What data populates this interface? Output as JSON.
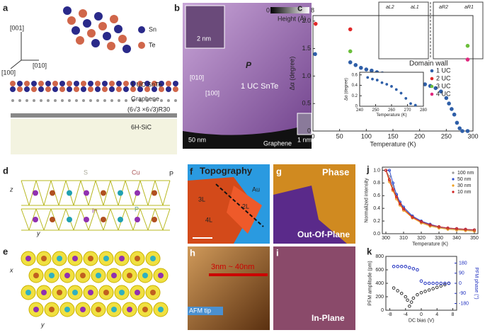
{
  "panels": {
    "a": {
      "label": "a",
      "dir_001": "[001]",
      "dir_100": "[100]",
      "dir_010": "[010]",
      "sn": "Sn",
      "te": "Te",
      "layer_snte": "1 UC SnTe",
      "layer_graphene": "Graphene",
      "reconstruction": "(6√3 ×6√3)R30",
      "substrate": "6H-SiC"
    },
    "b": {
      "label": "b",
      "zoom_scale": "2 nm",
      "cbar_min": "0",
      "cbar_max": "8",
      "cbar_label": "Height (Å)",
      "polarization": "P",
      "dir_010": "[010]",
      "dir_100": "[100]",
      "film": "1 UC SnTe",
      "scale": "50 nm",
      "graphene": "Graphene",
      "inset_scale": "1 nm"
    },
    "c": {
      "label": "c",
      "a_l2": "aL2",
      "a_l1": "aL1",
      "a_r2": "aR2",
      "a_r1": "aR1",
      "domain_wall": "Domain wall"
    },
    "d": {
      "label": "d",
      "s": "S",
      "cu": "Cu",
      "in": "In",
      "p_atom": "P",
      "p_arrow": "P",
      "z": "z",
      "y": "y"
    },
    "e": {
      "label": "e",
      "x": "x",
      "y": "y"
    },
    "f": {
      "label": "f",
      "title": "Topography",
      "au": "Au",
      "l3": "3L",
      "l2": "2L",
      "l4": "4L"
    },
    "g": {
      "label": "g",
      "title": "Phase",
      "subtitle": "Out-Of-Plane"
    },
    "h": {
      "label": "h",
      "thickness": "3nm ~ 40nm",
      "tip": "AFM tip"
    },
    "i": {
      "label": "i",
      "subtitle": "In-Plane"
    },
    "j": {
      "label": "j"
    },
    "k": {
      "label": "k"
    }
  },
  "chart_data": [
    {
      "type": "scatter",
      "x_label": "Temperature (K)",
      "y_label": "Δα (degree)",
      "xlim": [
        0,
        300
      ],
      "ylim": [
        0,
        2.1
      ],
      "xticks": [
        0,
        50,
        100,
        150,
        200,
        250,
        300
      ],
      "yticks": [
        0,
        {
          "value": 0.5,
          "label": "0.5"
        },
        {
          "value": 1,
          "label": "1.0"
        },
        {
          "value": 1.5,
          "label": "1.5"
        },
        {
          "value": 2,
          "label": "2.0"
        }
      ],
      "series": [
        {
          "name": "1 UC",
          "color": "#2f5fa8",
          "x": [
            4,
            70,
            80,
            90,
            100,
            110,
            120,
            130,
            140,
            150,
            160,
            170,
            180,
            190,
            200,
            210,
            220,
            230,
            240,
            250,
            255,
            260,
            265,
            270,
            275,
            280,
            290
          ],
          "values": [
            1.4,
            1.25,
            1.2,
            1.15,
            1.12,
            1.1,
            1.07,
            1.05,
            1.03,
            1.0,
            0.98,
            0.95,
            0.93,
            0.9,
            0.88,
            0.85,
            0.82,
            0.78,
            0.72,
            0.6,
            0.5,
            0.4,
            0.3,
            0.15,
            0.05,
            0,
            0
          ]
        },
        {
          "name": "2 UC",
          "color": "#e0292a",
          "x": [
            5,
            70
          ],
          "values": [
            1.95,
            1.85
          ]
        },
        {
          "name": "3 UC",
          "color": "#6cbf3c",
          "x": [
            70,
            290
          ],
          "values": [
            1.45,
            1.55
          ]
        },
        {
          "name": "4 UC",
          "color": "#e0287e",
          "x": [
            290
          ],
          "values": [
            1.3
          ]
        }
      ]
    },
    {
      "type": "scatter",
      "x_label": "Temperature (K)",
      "y_label": "Δα (degree)",
      "xlim": [
        240,
        280
      ],
      "ylim": [
        0,
        0.65
      ],
      "xticks": [
        240,
        250,
        260,
        270,
        280
      ],
      "yticks": [
        0,
        0.2,
        0.4,
        0.6
      ],
      "series": [
        {
          "color": "#2f5fa8",
          "x": [
            245,
            248,
            251,
            254,
            257,
            260,
            263,
            266,
            269,
            272,
            275
          ],
          "values": [
            0.55,
            0.52,
            0.5,
            0.45,
            0.42,
            0.38,
            0.32,
            0.25,
            0.15,
            0.05,
            0.02
          ]
        }
      ]
    },
    {
      "type": "line",
      "x_label": "Temperature (K)",
      "y_label": "Normalized intensity",
      "xlim": [
        298,
        352
      ],
      "ylim": [
        0,
        1.05
      ],
      "xticks": [
        300,
        310,
        320,
        330,
        340,
        350
      ],
      "yticks": [
        {
          "value": 0,
          "label": "0.0"
        },
        0.2,
        0.4,
        0.6,
        0.8,
        {
          "value": 1,
          "label": "1.0"
        }
      ],
      "x": [
        300,
        302,
        304,
        306,
        308,
        310,
        315,
        320,
        325,
        330,
        335,
        340,
        345,
        350
      ],
      "series": [
        {
          "name": "100 nm",
          "color": "#9a9a9a",
          "values": [
            1.0,
            0.9,
            0.75,
            0.6,
            0.48,
            0.4,
            0.27,
            0.18,
            0.13,
            0.1,
            0.08,
            0.07,
            0.06,
            0.05
          ]
        },
        {
          "name": "50 nm",
          "color": "#3050d0",
          "values": [
            1.0,
            1.0,
            0.8,
            0.62,
            0.5,
            0.42,
            0.28,
            0.2,
            0.15,
            0.11,
            0.09,
            0.08,
            0.07,
            0.06
          ]
        },
        {
          "name": "30 nm",
          "color": "#f0a020",
          "values": [
            1.0,
            0.82,
            0.68,
            0.55,
            0.45,
            0.37,
            0.25,
            0.17,
            0.12,
            0.09,
            0.07,
            0.06,
            0.05,
            0.04
          ]
        },
        {
          "name": "10 nm",
          "color": "#d02020",
          "values": [
            1.0,
            0.85,
            0.7,
            0.58,
            0.47,
            0.39,
            0.26,
            0.19,
            0.14,
            0.11,
            0.09,
            0.08,
            0.07,
            0.06
          ]
        }
      ]
    },
    {
      "type": "scatter",
      "x_label": "DC bias (V)",
      "y_label": "PFM amplitude (pm)",
      "y2_label": "PFM phase (°)",
      "xlim": [
        -9,
        9
      ],
      "ylim": [
        0,
        800
      ],
      "y2lim": [
        -240,
        240
      ],
      "xticks": [
        -8,
        -4,
        0,
        4,
        8
      ],
      "yticks": [
        0,
        200,
        400,
        600,
        800
      ],
      "y2ticks": [
        -180,
        -90,
        0,
        90,
        180
      ],
      "series": [
        {
          "color": "#333333",
          "x": [
            -7,
            -6,
            -5,
            -4,
            -3.5,
            -3,
            -2.5,
            -2,
            -1,
            0,
            1,
            2,
            3,
            4,
            5,
            6,
            7
          ],
          "values": [
            330,
            290,
            250,
            200,
            150,
            60,
            120,
            180,
            230,
            260,
            280,
            300,
            320,
            340,
            360,
            380,
            400
          ]
        },
        {
          "color": "#2030c0",
          "axis": "y2",
          "x": [
            -7,
            -6,
            -5,
            -4,
            -3,
            -2,
            -1,
            0,
            1,
            2,
            3,
            4,
            5,
            6,
            7
          ],
          "values": [
            150,
            150,
            150,
            150,
            140,
            130,
            120,
            20,
            0,
            0,
            0,
            0,
            0,
            0,
            0
          ]
        }
      ]
    }
  ]
}
